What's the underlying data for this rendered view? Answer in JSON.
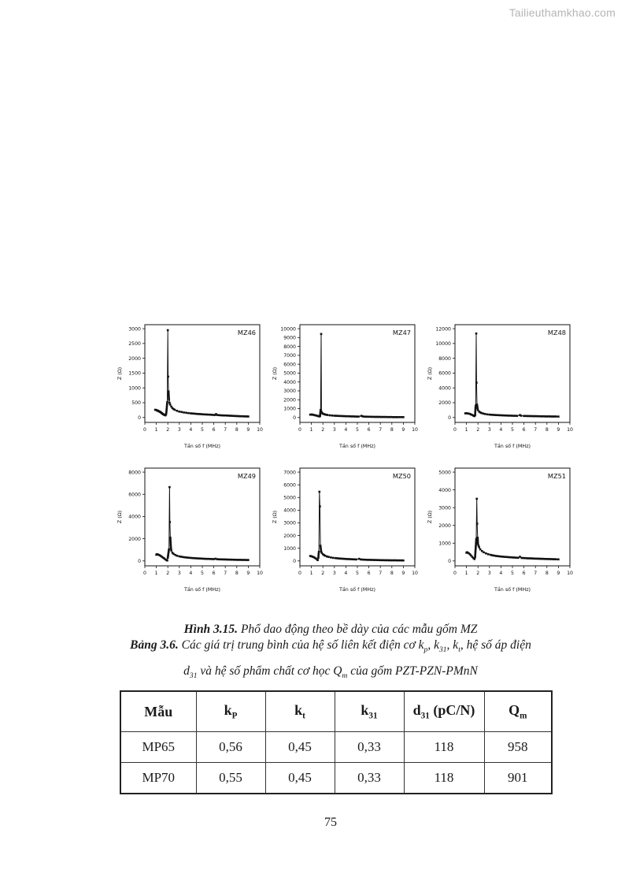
{
  "watermark": "Tailieuthamkhao.com",
  "page_number": "75",
  "figure_caption": [
    {
      "t": "Hình 3.15.",
      "b": true
    },
    {
      "t": " Phổ dao động theo bề dày của các mẫu gốm MZ"
    }
  ],
  "table_caption_line1": [
    {
      "t": "Bảng 3.6.",
      "b": true
    },
    {
      "t": " Các giá trị trung bình của hệ số liên kết điện cơ k"
    },
    {
      "t": "p",
      "sub": true
    },
    {
      "t": ", k"
    },
    {
      "t": "31",
      "sub": true
    },
    {
      "t": ", k"
    },
    {
      "t": "t",
      "sub": true
    },
    {
      "t": ", hệ số áp điện"
    }
  ],
  "table_caption_line2": [
    {
      "t": "d"
    },
    {
      "t": "31",
      "sub": true
    },
    {
      "t": " và hệ số phẩm chất cơ học Q"
    },
    {
      "t": "m",
      "sub": true
    },
    {
      "t": " của gốm PZT-PZN-PMnN"
    }
  ],
  "table": {
    "headers": [
      [
        {
          "t": "Mẫu"
        }
      ],
      [
        {
          "t": "k"
        },
        {
          "t": "P",
          "sub": true
        }
      ],
      [
        {
          "t": "k"
        },
        {
          "t": "t",
          "sub": true
        }
      ],
      [
        {
          "t": "k"
        },
        {
          "t": "31",
          "sub": true
        }
      ],
      [
        {
          "t": "d"
        },
        {
          "t": "31",
          "sub": true
        },
        {
          "t": " (pC/N)"
        }
      ],
      [
        {
          "t": "Q"
        },
        {
          "t": "m",
          "sub": true
        }
      ]
    ],
    "rows": [
      [
        "MP65",
        "0,56",
        "0,45",
        "0,33",
        "118",
        "958"
      ],
      [
        "MP70",
        "0,55",
        "0,45",
        "0,33",
        "118",
        "901"
      ]
    ]
  },
  "chart_data": [
    {
      "type": "line",
      "title": "MZ46",
      "xlabel": "Tần số f (MHz)",
      "ylabel": "Z (Ω)",
      "xlim": [
        0,
        10
      ],
      "ylim": [
        0,
        3000
      ],
      "xtick": 1,
      "ytick": 500,
      "grid": false,
      "points": [
        [
          0.9,
          260
        ],
        [
          1.0,
          255
        ],
        [
          1.05,
          240
        ],
        [
          1.1,
          235
        ],
        [
          1.15,
          225
        ],
        [
          1.2,
          215
        ],
        [
          1.25,
          205
        ],
        [
          1.3,
          195
        ],
        [
          1.35,
          185
        ],
        [
          1.4,
          170
        ],
        [
          1.45,
          155
        ],
        [
          1.5,
          140
        ],
        [
          1.55,
          125
        ],
        [
          1.6,
          110
        ],
        [
          1.65,
          100
        ],
        [
          1.7,
          90
        ],
        [
          1.75,
          80
        ],
        [
          1.8,
          75
        ],
        [
          1.85,
          110
        ],
        [
          1.9,
          280
        ],
        [
          1.95,
          520
        ],
        [
          2.0,
          2950
        ],
        [
          2.03,
          1380
        ],
        [
          2.06,
          880
        ],
        [
          2.1,
          600
        ],
        [
          2.15,
          500
        ],
        [
          2.2,
          440
        ],
        [
          2.3,
          370
        ],
        [
          2.4,
          320
        ],
        [
          2.5,
          285
        ],
        [
          2.6,
          260
        ],
        [
          2.8,
          225
        ],
        [
          3.0,
          200
        ],
        [
          3.2,
          185
        ],
        [
          3.4,
          170
        ],
        [
          3.6,
          160
        ],
        [
          3.8,
          150
        ],
        [
          4.0,
          140
        ],
        [
          4.3,
          130
        ],
        [
          4.6,
          120
        ],
        [
          5.0,
          110
        ],
        [
          5.4,
          100
        ],
        [
          5.8,
          92
        ],
        [
          6.1,
          85
        ],
        [
          6.2,
          115
        ],
        [
          6.3,
          85
        ],
        [
          6.6,
          75
        ],
        [
          7.0,
          68
        ],
        [
          7.4,
          60
        ],
        [
          7.8,
          52
        ],
        [
          8.2,
          45
        ],
        [
          8.6,
          40
        ],
        [
          9.0,
          35
        ]
      ]
    },
    {
      "type": "line",
      "title": "MZ47",
      "xlabel": "Tần số f (MHz)",
      "ylabel": "Z (Ω)",
      "xlim": [
        0,
        10
      ],
      "ylim": [
        0,
        10000
      ],
      "xtick": 1,
      "ytick": 1000,
      "grid": false,
      "points": [
        [
          0.9,
          320
        ],
        [
          1.0,
          340
        ],
        [
          1.05,
          330
        ],
        [
          1.1,
          315
        ],
        [
          1.2,
          290
        ],
        [
          1.3,
          260
        ],
        [
          1.4,
          230
        ],
        [
          1.5,
          195
        ],
        [
          1.6,
          160
        ],
        [
          1.65,
          140
        ],
        [
          1.7,
          120
        ],
        [
          1.75,
          160
        ],
        [
          1.8,
          850
        ],
        [
          1.85,
          9400
        ],
        [
          1.88,
          650
        ],
        [
          1.95,
          480
        ],
        [
          2.0,
          430
        ],
        [
          2.1,
          380
        ],
        [
          2.2,
          340
        ],
        [
          2.3,
          310
        ],
        [
          2.4,
          285
        ],
        [
          2.6,
          250
        ],
        [
          2.8,
          225
        ],
        [
          3.0,
          205
        ],
        [
          3.3,
          185
        ],
        [
          3.6,
          168
        ],
        [
          3.9,
          152
        ],
        [
          4.2,
          138
        ],
        [
          4.5,
          125
        ],
        [
          4.8,
          115
        ],
        [
          5.1,
          105
        ],
        [
          5.35,
          190
        ],
        [
          5.45,
          130
        ],
        [
          5.6,
          100
        ],
        [
          5.9,
          90
        ],
        [
          6.2,
          82
        ],
        [
          6.5,
          75
        ],
        [
          6.9,
          68
        ],
        [
          7.3,
          60
        ],
        [
          7.7,
          54
        ],
        [
          8.1,
          48
        ],
        [
          8.5,
          44
        ],
        [
          9.0,
          40
        ]
      ]
    },
    {
      "type": "line",
      "title": "MZ48",
      "xlabel": "Tần số f (MHz)",
      "ylabel": "Z (Ω)",
      "xlim": [
        0,
        10
      ],
      "ylim": [
        0,
        12000
      ],
      "xtick": 1,
      "ytick": 2000,
      "grid": false,
      "points": [
        [
          0.9,
          560
        ],
        [
          1.0,
          575
        ],
        [
          1.1,
          555
        ],
        [
          1.2,
          520
        ],
        [
          1.3,
          475
        ],
        [
          1.4,
          415
        ],
        [
          1.5,
          345
        ],
        [
          1.6,
          270
        ],
        [
          1.65,
          230
        ],
        [
          1.7,
          195
        ],
        [
          1.75,
          320
        ],
        [
          1.8,
          1600
        ],
        [
          1.85,
          11350
        ],
        [
          1.88,
          4700
        ],
        [
          1.92,
          1750
        ],
        [
          2.0,
          1000
        ],
        [
          2.1,
          800
        ],
        [
          2.2,
          690
        ],
        [
          2.3,
          610
        ],
        [
          2.45,
          540
        ],
        [
          2.6,
          480
        ],
        [
          2.8,
          430
        ],
        [
          3.0,
          395
        ],
        [
          3.3,
          360
        ],
        [
          3.6,
          330
        ],
        [
          3.9,
          305
        ],
        [
          4.2,
          285
        ],
        [
          4.5,
          268
        ],
        [
          4.8,
          252
        ],
        [
          5.1,
          238
        ],
        [
          5.4,
          228
        ],
        [
          5.65,
          330
        ],
        [
          5.75,
          240
        ],
        [
          6.0,
          215
        ],
        [
          6.4,
          200
        ],
        [
          6.8,
          185
        ],
        [
          7.2,
          172
        ],
        [
          7.6,
          160
        ],
        [
          8.0,
          150
        ],
        [
          8.4,
          142
        ],
        [
          8.8,
          135
        ],
        [
          9.0,
          130
        ]
      ]
    },
    {
      "type": "line",
      "title": "MZ49",
      "xlabel": "Tần số f (MHz)",
      "ylabel": "Z (Ω)",
      "xlim": [
        0,
        10
      ],
      "ylim": [
        0,
        8000
      ],
      "xtick": 1,
      "ytick": 2000,
      "grid": false,
      "points": [
        [
          1.0,
          560
        ],
        [
          1.05,
          600
        ],
        [
          1.1,
          590
        ],
        [
          1.2,
          555
        ],
        [
          1.3,
          505
        ],
        [
          1.4,
          440
        ],
        [
          1.5,
          365
        ],
        [
          1.6,
          285
        ],
        [
          1.7,
          210
        ],
        [
          1.8,
          135
        ],
        [
          1.9,
          70
        ],
        [
          1.95,
          45
        ],
        [
          2.0,
          290
        ],
        [
          2.05,
          680
        ],
        [
          2.1,
          1050
        ],
        [
          2.15,
          6650
        ],
        [
          2.18,
          3500
        ],
        [
          2.22,
          2100
        ],
        [
          2.26,
          1300
        ],
        [
          2.3,
          950
        ],
        [
          2.4,
          740
        ],
        [
          2.5,
          630
        ],
        [
          2.65,
          540
        ],
        [
          2.8,
          470
        ],
        [
          3.0,
          410
        ],
        [
          3.3,
          355
        ],
        [
          3.6,
          315
        ],
        [
          3.9,
          283
        ],
        [
          4.2,
          258
        ],
        [
          4.5,
          237
        ],
        [
          4.8,
          218
        ],
        [
          5.1,
          202
        ],
        [
          5.4,
          188
        ],
        [
          5.7,
          175
        ],
        [
          6.0,
          163
        ],
        [
          6.15,
          200
        ],
        [
          6.3,
          155
        ],
        [
          6.7,
          140
        ],
        [
          7.1,
          127
        ],
        [
          7.5,
          115
        ],
        [
          7.9,
          105
        ],
        [
          8.3,
          97
        ],
        [
          8.7,
          90
        ],
        [
          9.0,
          85
        ]
      ]
    },
    {
      "type": "line",
      "title": "MZ50",
      "xlabel": "Tần số f (MHz)",
      "ylabel": "Z (Ω)",
      "xlim": [
        0,
        10
      ],
      "ylim": [
        0,
        7000
      ],
      "xtick": 1,
      "ytick": 1000,
      "grid": false,
      "points": [
        [
          0.9,
          390
        ],
        [
          1.0,
          365
        ],
        [
          1.1,
          335
        ],
        [
          1.2,
          295
        ],
        [
          1.3,
          245
        ],
        [
          1.4,
          185
        ],
        [
          1.5,
          115
        ],
        [
          1.55,
          70
        ],
        [
          1.6,
          240
        ],
        [
          1.65,
          720
        ],
        [
          1.7,
          5450
        ],
        [
          1.74,
          4300
        ],
        [
          1.79,
          1200
        ],
        [
          1.85,
          760
        ],
        [
          1.9,
          640
        ],
        [
          2.0,
          530
        ],
        [
          2.1,
          460
        ],
        [
          2.2,
          410
        ],
        [
          2.35,
          355
        ],
        [
          2.5,
          315
        ],
        [
          2.7,
          275
        ],
        [
          2.9,
          245
        ],
        [
          3.1,
          222
        ],
        [
          3.4,
          195
        ],
        [
          3.7,
          175
        ],
        [
          4.0,
          158
        ],
        [
          4.3,
          143
        ],
        [
          4.6,
          130
        ],
        [
          4.9,
          118
        ],
        [
          5.15,
          165
        ],
        [
          5.3,
          115
        ],
        [
          5.6,
          100
        ],
        [
          5.9,
          90
        ],
        [
          6.2,
          82
        ],
        [
          6.6,
          73
        ],
        [
          7.0,
          65
        ],
        [
          7.4,
          58
        ],
        [
          7.8,
          52
        ],
        [
          8.2,
          48
        ],
        [
          8.6,
          44
        ],
        [
          9.0,
          40
        ]
      ]
    },
    {
      "type": "line",
      "title": "MZ51",
      "xlabel": "Tần số f (MHz)",
      "ylabel": "Z (Ω)",
      "xlim": [
        0,
        10
      ],
      "ylim": [
        0,
        5000
      ],
      "xtick": 1,
      "ytick": 1000,
      "grid": false,
      "points": [
        [
          1.0,
          460
        ],
        [
          1.05,
          490
        ],
        [
          1.1,
          470
        ],
        [
          1.2,
          430
        ],
        [
          1.3,
          375
        ],
        [
          1.4,
          305
        ],
        [
          1.5,
          230
        ],
        [
          1.6,
          160
        ],
        [
          1.7,
          105
        ],
        [
          1.75,
          215
        ],
        [
          1.8,
          690
        ],
        [
          1.85,
          1230
        ],
        [
          1.9,
          3500
        ],
        [
          1.93,
          2100
        ],
        [
          1.97,
          1310
        ],
        [
          2.0,
          960
        ],
        [
          2.1,
          770
        ],
        [
          2.2,
          650
        ],
        [
          2.35,
          560
        ],
        [
          2.5,
          490
        ],
        [
          2.7,
          425
        ],
        [
          2.9,
          375
        ],
        [
          3.1,
          340
        ],
        [
          3.4,
          300
        ],
        [
          3.7,
          272
        ],
        [
          4.0,
          250
        ],
        [
          4.3,
          232
        ],
        [
          4.6,
          216
        ],
        [
          4.9,
          202
        ],
        [
          5.2,
          190
        ],
        [
          5.5,
          178
        ],
        [
          5.65,
          235
        ],
        [
          5.8,
          170
        ],
        [
          6.1,
          158
        ],
        [
          6.4,
          148
        ],
        [
          6.8,
          137
        ],
        [
          7.2,
          127
        ],
        [
          7.6,
          118
        ],
        [
          8.0,
          110
        ],
        [
          8.4,
          102
        ],
        [
          8.8,
          95
        ],
        [
          9.0,
          90
        ]
      ]
    }
  ]
}
